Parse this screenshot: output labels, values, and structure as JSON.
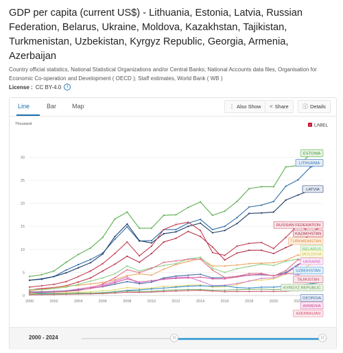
{
  "header": {
    "title": "GDP per capita (current US$) - Lithuania, Estonia, Latvia, Russian Federation, Belarus, Ukraine, Moldova, Kazakhstan, Tajikistan, Turkmenistan, Uzbekistan, Kyrgyz Republic, Georgia, Armenia, Azerbaijan",
    "source": "Country official statistics, National Statistical Organizations and/or Central Banks; National Accounts data files, Organisation for Economic Co-operation and Development ( OECD ); Staff estimates, World Bank ( WB )",
    "license_label": "License :",
    "license_value": "CC BY-4.0",
    "info_icon": "info-icon"
  },
  "tabs": [
    {
      "label": "Line",
      "active": true
    },
    {
      "label": "Bar",
      "active": false
    },
    {
      "label": "Map",
      "active": false
    }
  ],
  "toolbar": {
    "also_show": "Also Show",
    "share": "Share",
    "details": "Details",
    "icons": [
      "more-vertical-icon",
      "share-icon",
      "info-icon"
    ]
  },
  "footer": {
    "range_label": "2000 - 2024",
    "handle_glyph": "|||"
  },
  "colors": {
    "accent": "#1a6fb0",
    "label_checkbox": "#c8102e",
    "grid": "#eeeeee",
    "slider_fill": "#4aa3d6"
  },
  "chart_data": {
    "type": "line",
    "unit_label": "Thousand",
    "legend_toggle": "LABEL",
    "legend_placement": "right (labels at line ends)",
    "xlim": [
      2000,
      2024
    ],
    "ylim": [
      0,
      32
    ],
    "grid": true,
    "x_ticks": [
      "2000",
      "2002",
      "2004",
      "2006",
      "2008",
      "2010",
      "2012",
      "2014",
      "2016",
      "2018",
      "2020",
      "2022"
    ],
    "y_ticks": [
      "0",
      "5",
      "10",
      "15",
      "20",
      "25",
      "30"
    ],
    "x": [
      2000,
      2001,
      2002,
      2003,
      2004,
      2005,
      2006,
      2007,
      2008,
      2009,
      2010,
      2011,
      2012,
      2013,
      2014,
      2015,
      2016,
      2017,
      2018,
      2019,
      2020,
      2021,
      2022,
      2023,
      2024
    ],
    "series": [
      {
        "name": "ESTONIA",
        "color": "#5cae4f",
        "label_bg": "#e6f3e1",
        "label_border": "#6fbf5f",
        "label_text": "#3f8f34",
        "label_y": 30.9,
        "values": [
          4.1,
          4.5,
          5.3,
          7.2,
          8.9,
          10.3,
          12.6,
          16.6,
          18.1,
          14.6,
          14.6,
          17.4,
          17.5,
          19.1,
          20.3,
          17.4,
          18.3,
          20.4,
          23.2,
          23.6,
          23.6,
          27.9,
          28.2,
          30.6,
          31.2
        ]
      },
      {
        "name": "LITHUANIA",
        "color": "#2f6ea8",
        "label_bg": "#e3edf7",
        "label_border": "#4f86bd",
        "label_text": "#2f6ea8",
        "label_y": 28.8,
        "values": [
          3.3,
          3.5,
          4.1,
          5.5,
          6.7,
          7.8,
          9.2,
          12.2,
          14.9,
          11.8,
          11.9,
          14.3,
          14.3,
          15.7,
          16.5,
          14.3,
          15.0,
          16.9,
          19.2,
          19.6,
          20.4,
          23.7,
          25.1,
          27.8,
          28.9
        ]
      },
      {
        "name": "LATVIA",
        "color": "#1f3c66",
        "label_bg": "#e4e8ef",
        "label_border": "#3d5a85",
        "label_text": "#1f3c66",
        "label_y": 23.1,
        "values": [
          3.3,
          3.6,
          4.1,
          4.9,
          6.0,
          7.1,
          9.0,
          12.8,
          15.5,
          11.9,
          11.4,
          13.4,
          13.8,
          15.0,
          15.7,
          13.6,
          14.1,
          15.6,
          17.8,
          17.9,
          18.1,
          20.7,
          21.8,
          22.8,
          23.3
        ]
      },
      {
        "name": "RUSSIAN FEDERATION",
        "color": "#c43d52",
        "label_bg": "#f9e6e9",
        "label_border": "#d45c6f",
        "label_text": "#b12f44",
        "label_y": 15.3,
        "values": [
          1.8,
          2.1,
          2.4,
          3.0,
          4.1,
          5.3,
          6.9,
          9.1,
          11.6,
          8.6,
          10.7,
          14.3,
          15.4,
          15.9,
          14.1,
          9.3,
          8.7,
          10.7,
          11.3,
          11.5,
          10.2,
          12.6,
          15.3,
          13.8,
          14.9
        ]
      },
      {
        "name": "KAZAKHSTAN",
        "color": "#b8334a",
        "label_bg": "#f7e3e6",
        "label_border": "#c9566a",
        "label_text": "#a8293e",
        "label_y": 13.5,
        "values": [
          1.2,
          1.5,
          1.7,
          2.1,
          2.9,
          3.8,
          5.3,
          6.8,
          8.5,
          7.2,
          9.1,
          11.6,
          12.4,
          13.9,
          12.8,
          10.5,
          7.7,
          9.2,
          9.8,
          9.8,
          9.1,
          10.4,
          11.5,
          13.1,
          14.1
        ]
      },
      {
        "name": "TURKMENISTAN",
        "color": "#f0a35e",
        "label_bg": "#fdf0e4",
        "label_border": "#f2b47c",
        "label_text": "#e07f2a",
        "label_y": 11.8,
        "values": [
          1.0,
          1.3,
          1.6,
          2.0,
          2.2,
          2.5,
          2.8,
          3.4,
          4.3,
          4.7,
          4.4,
          5.7,
          6.7,
          7.4,
          8.0,
          6.4,
          6.4,
          6.6,
          6.9,
          7.0,
          7.1,
          7.6,
          8.8,
          8.2,
          8.9
        ]
      },
      {
        "name": "BELARUS",
        "color": "#8ed08a",
        "label_bg": "#eef8ea",
        "label_border": "#a5dba0",
        "label_text": "#6abf65",
        "label_y": 10.1,
        "values": [
          1.3,
          1.2,
          1.5,
          1.8,
          2.4,
          3.1,
          3.8,
          4.7,
          6.4,
          5.3,
          6.0,
          6.5,
          6.9,
          7.9,
          8.3,
          5.9,
          5.0,
          5.8,
          6.3,
          6.8,
          6.5,
          7.4,
          7.9,
          7.3,
          8.2
        ]
      },
      {
        "name": "MOLDOVA",
        "color": "#e3d96b",
        "label_bg": "#fbf9e3",
        "label_border": "#e9e28c",
        "label_text": "#c8bd3e",
        "label_y": 9.0,
        "values": [
          0.4,
          0.4,
          0.5,
          0.6,
          0.7,
          0.8,
          1.0,
          1.2,
          1.7,
          1.5,
          1.6,
          2.0,
          2.0,
          2.2,
          2.3,
          1.8,
          1.9,
          2.3,
          3.2,
          3.3,
          3.6,
          4.6,
          5.2,
          6.7,
          7.6
        ]
      },
      {
        "name": "UKRAINE",
        "color": "#d680c9",
        "label_bg": "#fbeaf8",
        "label_border": "#df9bd4",
        "label_text": "#c65bb6",
        "label_y": 7.4,
        "values": [
          0.6,
          0.8,
          0.9,
          1.0,
          1.4,
          1.8,
          2.3,
          3.1,
          4.0,
          2.5,
          2.9,
          3.6,
          3.9,
          4.0,
          3.1,
          2.1,
          2.2,
          2.6,
          3.1,
          3.7,
          3.8,
          4.8,
          4.5,
          5.1,
          5.4
        ]
      },
      {
        "name": "UZBEKISTAN",
        "color": "#3a8fcc",
        "label_bg": "#e4f1fa",
        "label_border": "#5ca6dd",
        "label_text": "#2a7ab8",
        "label_y": 5.4,
        "values": [
          0.6,
          0.5,
          0.4,
          0.4,
          0.5,
          0.5,
          0.6,
          0.8,
          1.1,
          1.2,
          1.4,
          1.6,
          1.8,
          2.0,
          2.1,
          2.0,
          2.1,
          1.7,
          1.6,
          1.8,
          1.8,
          2.0,
          2.3,
          2.5,
          2.9
        ]
      },
      {
        "name": "TAJIKISTAN",
        "color": "#c95a72",
        "label_bg": "#f8e4e9",
        "label_border": "#d77b8f",
        "label_text": "#b84862",
        "label_y": 3.5,
        "values": [
          0.14,
          0.17,
          0.19,
          0.24,
          0.31,
          0.34,
          0.4,
          0.52,
          0.7,
          0.67,
          0.74,
          0.83,
          0.95,
          1.04,
          1.1,
          0.93,
          0.8,
          0.85,
          0.85,
          0.88,
          0.85,
          0.9,
          1.05,
          1.19,
          1.34
        ]
      },
      {
        "name": "KYRGYZ REPUBLIC",
        "color": "#7fb06d",
        "label_bg": "#e9f2e4",
        "label_border": "#98c289",
        "label_text": "#5f9a4c",
        "label_y": 1.7,
        "values": [
          0.28,
          0.31,
          0.32,
          0.38,
          0.43,
          0.48,
          0.55,
          0.72,
          0.97,
          0.87,
          0.88,
          1.12,
          1.18,
          1.28,
          1.28,
          1.12,
          1.12,
          1.24,
          1.31,
          1.37,
          1.26,
          1.38,
          1.61,
          1.89,
          2.1
        ]
      },
      {
        "name": "GEORGIA",
        "color": "#4a6fa8",
        "label_bg": "#e6ecf5",
        "label_border": "#6c8cbd",
        "label_text": "#3a5e96",
        "label_y": -0.5,
        "values": [
          0.75,
          0.8,
          0.85,
          0.98,
          1.23,
          1.55,
          1.9,
          2.45,
          3.0,
          2.6,
          2.9,
          3.8,
          4.2,
          4.4,
          4.6,
          3.8,
          3.9,
          4.1,
          4.4,
          4.5,
          4.3,
          5.0,
          6.7,
          8.1,
          8.9
        ]
      },
      {
        "name": "ARMENIA",
        "color": "#d65aa6",
        "label_bg": "#fae5f1",
        "label_border": "#e07dbb",
        "label_text": "#c44690",
        "label_y": -2.2,
        "values": [
          0.62,
          0.69,
          0.74,
          0.87,
          1.13,
          1.52,
          2.0,
          2.8,
          3.6,
          2.9,
          3.2,
          3.5,
          3.7,
          3.8,
          3.99,
          3.6,
          3.6,
          4.0,
          4.4,
          4.6,
          4.3,
          4.7,
          6.6,
          8.0,
          8.6
        ]
      },
      {
        "name": "AZERBAIJAN",
        "color": "#e0708a",
        "label_bg": "#fbe7ec",
        "label_border": "#e8909f",
        "label_text": "#d05270",
        "label_y": -3.9,
        "values": [
          0.66,
          0.7,
          0.76,
          0.88,
          1.05,
          1.58,
          2.47,
          3.85,
          5.57,
          4.95,
          5.84,
          7.19,
          7.5,
          7.88,
          7.89,
          5.5,
          3.88,
          4.15,
          4.74,
          4.79,
          4.21,
          5.39,
          7.76,
          7.16,
          7.3
        ]
      }
    ]
  }
}
